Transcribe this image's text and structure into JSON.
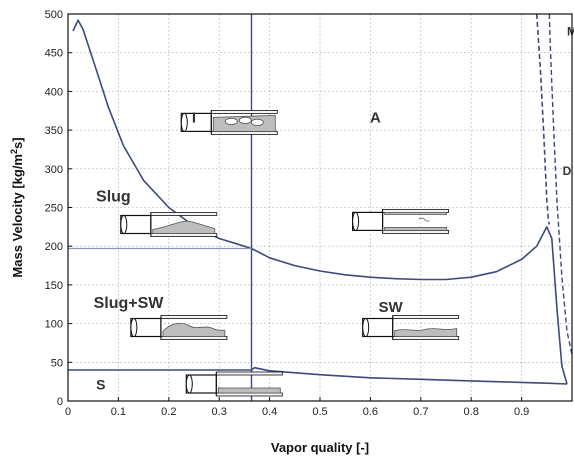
{
  "chart_data": {
    "type": "line",
    "xlabel": "Vapor quality [-]",
    "ylabel_main": "Mass Velocity [kg/m",
    "ylabel_sup": "2",
    "ylabel_end": "s]",
    "xlim": [
      0,
      1.0
    ],
    "ylim": [
      0,
      500
    ],
    "x_ticks": [
      0,
      0.1,
      0.2,
      0.3,
      0.4,
      0.5,
      0.6,
      0.7,
      0.8,
      0.9
    ],
    "x_tick_labels": [
      "0",
      "0.1",
      "0.2",
      "0.3",
      "0.4",
      "0.5",
      "0.6",
      "0.7",
      "0.8",
      "0.9"
    ],
    "y_ticks": [
      0,
      50,
      100,
      150,
      200,
      250,
      300,
      350,
      400,
      450,
      500
    ],
    "y_tick_labels": [
      "0",
      "50",
      "100",
      "150",
      "200",
      "250",
      "300",
      "350",
      "400",
      "450",
      "500"
    ],
    "grid": true,
    "series": [
      {
        "style": "solid",
        "color": "#3c4a7e",
        "width": 1.6,
        "x": [
          0.01,
          0.02,
          0.03,
          0.05,
          0.08,
          0.11,
          0.15,
          0.2,
          0.25,
          0.3,
          0.34,
          0.364
        ],
        "y": [
          478,
          492,
          480,
          440,
          380,
          330,
          285,
          250,
          226,
          210,
          202,
          197
        ]
      },
      {
        "style": "solid",
        "color": "#3c4a7e",
        "width": 1.6,
        "x": [
          0.364,
          0.4,
          0.45,
          0.5,
          0.55,
          0.6,
          0.65,
          0.7,
          0.75,
          0.8,
          0.85,
          0.9,
          0.93,
          0.95,
          0.96,
          0.97,
          0.98,
          0.99
        ],
        "y": [
          197,
          185,
          175,
          168,
          163,
          160,
          158,
          157,
          157,
          160,
          167,
          183,
          200,
          225,
          210,
          120,
          45,
          22
        ]
      },
      {
        "style": "solid",
        "color": "#3c4a7e",
        "width": 1.6,
        "x": [
          0,
          0.364,
          0.37,
          0.4,
          0.5,
          0.6,
          0.7,
          0.8,
          0.9,
          0.95,
          0.99
        ],
        "y": [
          40,
          40,
          43,
          39,
          34,
          30,
          28,
          26,
          24,
          23,
          22
        ]
      },
      {
        "style": "solid",
        "color": "#3c4a7e",
        "width": 1.4,
        "x": [
          0.364,
          0.364
        ],
        "y": [
          0,
          500
        ]
      },
      {
        "style": "solid",
        "color": "#8a93b8",
        "width": 1.2,
        "x": [
          0,
          0.364
        ],
        "y": [
          197,
          197
        ]
      },
      {
        "style": "dashed",
        "color": "#3c4a7e",
        "width": 1.6,
        "x": [
          0.93,
          0.938,
          0.945,
          0.95,
          0.953,
          0.955
        ],
        "y": [
          500,
          420,
          330,
          260,
          235,
          228
        ]
      },
      {
        "style": "dashed",
        "color": "#3c4a7e",
        "width": 1.4,
        "x": [
          0.955,
          0.957,
          0.96,
          0.965,
          0.97,
          0.98,
          0.99,
          1.0
        ],
        "y": [
          500,
          460,
          410,
          330,
          260,
          160,
          90,
          60
        ]
      }
    ],
    "annotations": [
      {
        "text": "I",
        "x": 0.25,
        "y": 360,
        "size": 15
      },
      {
        "text": "A",
        "x": 0.61,
        "y": 360,
        "size": 15
      },
      {
        "text": "Slug",
        "x": 0.09,
        "y": 258,
        "size": 16
      },
      {
        "text": "Slug+SW",
        "x": 0.12,
        "y": 120,
        "size": 16
      },
      {
        "text": "SW",
        "x": 0.64,
        "y": 115,
        "size": 15
      },
      {
        "text": "S",
        "x": 0.065,
        "y": 15,
        "size": 14
      },
      {
        "text": "D",
        "x": 0.99,
        "y": 292,
        "size": 12
      },
      {
        "text": "M",
        "x": 1.0,
        "y": 472,
        "size": 12
      }
    ],
    "pipe_icons": [
      {
        "pattern": "intermittent",
        "x": 0.32,
        "y": 360
      },
      {
        "pattern": "annular",
        "x": 0.66,
        "y": 232
      },
      {
        "pattern": "slug",
        "x": 0.2,
        "y": 228
      },
      {
        "pattern": "slug-stratified-wavy",
        "x": 0.22,
        "y": 95
      },
      {
        "pattern": "stratified-wavy",
        "x": 0.68,
        "y": 95
      },
      {
        "pattern": "stratified",
        "x": 0.33,
        "y": 22
      }
    ]
  }
}
